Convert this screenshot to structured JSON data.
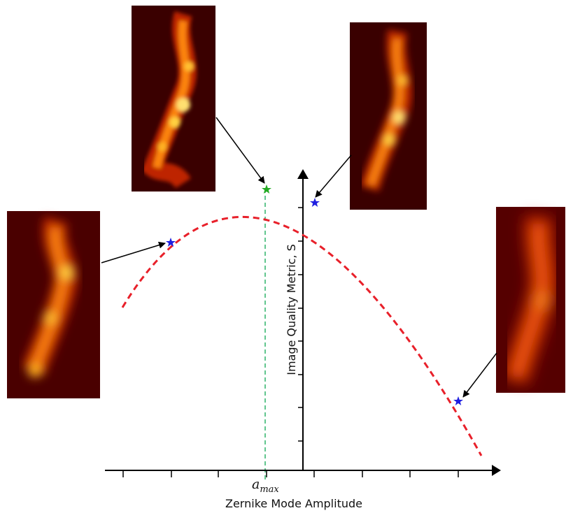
{
  "chart_data": {
    "type": "line",
    "xlabel": "Zernike Mode Amplitude",
    "ylabel": "Image Quality Metric, S",
    "annotation": {
      "symbol": "a",
      "subscript": "max"
    },
    "colors": {
      "curve": "#e8202a",
      "optimum_marker": "#22aa22",
      "sample_marker": "#1f1fe0",
      "optimum_line": "#2fb36a",
      "axes": "#000000"
    },
    "curve": "dashed parabola",
    "points": [
      {
        "name": "left-sample",
        "marker": "sample"
      },
      {
        "name": "optimum",
        "marker": "optimum"
      },
      {
        "name": "right-near-sample",
        "marker": "sample"
      },
      {
        "name": "right-far-sample",
        "marker": "sample"
      }
    ],
    "insets": [
      {
        "name": "inset-top-left",
        "description": "sharp"
      },
      {
        "name": "inset-top-right",
        "description": "slightly blurred"
      },
      {
        "name": "inset-left",
        "description": "blurred"
      },
      {
        "name": "inset-right",
        "description": "very blurred"
      }
    ]
  }
}
